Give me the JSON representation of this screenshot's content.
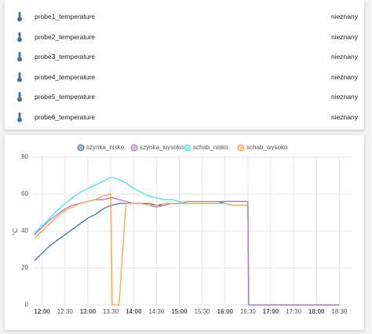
{
  "entities": [
    {
      "name": "probe1_temperature",
      "state": "nieznany"
    },
    {
      "name": "probe2_temperature",
      "state": "nieznany"
    },
    {
      "name": "probe3_temperature",
      "state": "nieznany"
    },
    {
      "name": "probe4_temperature",
      "state": "nieznany"
    },
    {
      "name": "probe5_temperature",
      "state": "nieznany"
    },
    {
      "name": "probe6_temperature",
      "state": "nieznany"
    }
  ],
  "chart_data": {
    "type": "line",
    "y_label": "°C",
    "x": [
      "11:50",
      "12:00",
      "12:10",
      "12:20",
      "12:30",
      "12:40",
      "12:50",
      "13:00",
      "13:10",
      "13:20",
      "13:30",
      "13:32",
      "13:41",
      "13:50",
      "14:00",
      "14:10",
      "14:20",
      "14:30",
      "14:40",
      "14:50",
      "15:00",
      "15:10",
      "15:20",
      "15:30",
      "15:40",
      "15:50",
      "16:00",
      "16:10",
      "16:20",
      "16:30",
      "16:31",
      "18:30"
    ],
    "series": [
      {
        "name": "szynka_nisko",
        "color": "#4e6ea3",
        "values": [
          24,
          28,
          32,
          35,
          38,
          41,
          44,
          47,
          49,
          52,
          54,
          54,
          55,
          55,
          55,
          55,
          55,
          54,
          54,
          55,
          55,
          55,
          55,
          55,
          55,
          55,
          56,
          56,
          56,
          56,
          0,
          0
        ]
      },
      {
        "name": "szynka_wysoko",
        "color": "#b07cb8",
        "values": [
          38,
          42,
          46,
          49,
          52,
          54,
          55,
          56,
          57,
          57,
          58,
          58,
          57,
          56,
          55,
          55,
          54,
          53,
          54,
          55,
          55,
          56,
          56,
          56,
          56,
          56,
          56,
          56,
          56,
          56,
          0,
          0
        ]
      },
      {
        "name": "schab_nisko",
        "color": "#4fe0e0",
        "values": [
          39,
          43,
          47,
          51,
          55,
          58,
          61,
          63,
          65,
          67,
          69,
          69,
          68,
          66,
          63,
          61,
          59,
          58,
          57,
          57,
          56,
          55,
          55,
          55,
          55,
          55,
          55,
          54,
          54,
          54,
          null,
          null
        ]
      },
      {
        "name": "schab_wysoko",
        "color": "#f7a34b",
        "values": [
          36,
          40,
          44,
          48,
          51,
          53,
          55,
          56,
          57,
          59,
          60,
          0,
          0,
          55,
          55,
          55,
          54,
          54,
          55,
          55,
          55,
          55,
          55,
          55,
          55,
          55,
          55,
          54,
          54,
          54,
          null,
          null
        ]
      }
    ],
    "xlim": [
      "11:48",
      "18:45"
    ],
    "xticks": [
      "12:00",
      "12:30",
      "13:00",
      "13:30",
      "14:00",
      "14:30",
      "15:00",
      "15:30",
      "16:00",
      "16:30",
      "17:00",
      "17:30",
      "18:00",
      "18:30"
    ],
    "ylim": [
      0,
      80
    ],
    "yticks": [
      0,
      20,
      40,
      60,
      80
    ],
    "grid": true
  }
}
